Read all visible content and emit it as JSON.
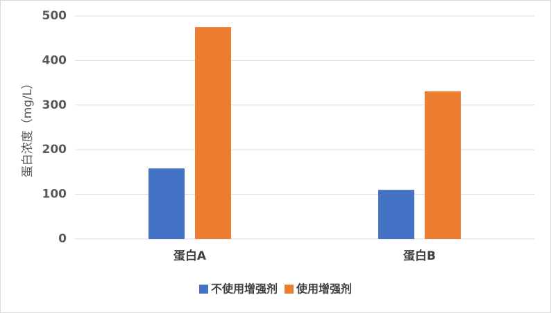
{
  "chart_data": {
    "type": "bar",
    "y_label": "蛋白浓度（mg/L）",
    "categories": [
      "蛋白A",
      "蛋白B"
    ],
    "series": [
      {
        "name": "不使用增强剂",
        "color": "#4472c4",
        "values": [
          158,
          110
        ]
      },
      {
        "name": "使用增强剂",
        "color": "#ed7d31",
        "values": [
          475,
          331
        ]
      }
    ],
    "ylim": [
      0,
      500
    ],
    "yticks": [
      0,
      100,
      200,
      300,
      400,
      500
    ],
    "grid": true,
    "legend": "bottom"
  }
}
